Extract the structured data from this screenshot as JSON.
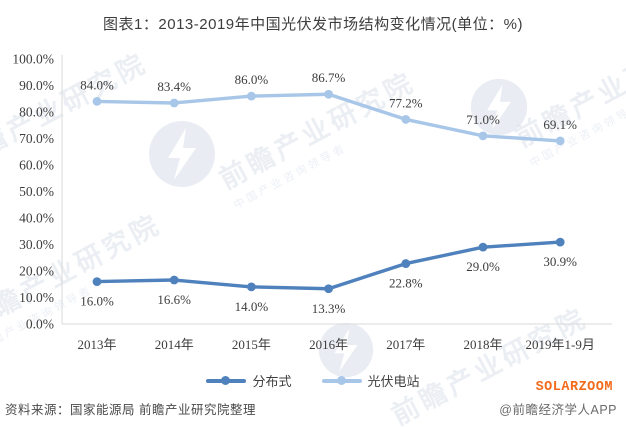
{
  "title": "图表1：2013-2019年中国光伏发市场结构变化情况(单位：%)",
  "chart_data": {
    "type": "line",
    "categories": [
      "2013年",
      "2014年",
      "2015年",
      "2016年",
      "2017年",
      "2018年",
      "2019年1-9月"
    ],
    "series": [
      {
        "name": "光伏电站",
        "color": "#a8c7e8",
        "values": [
          84.0,
          83.4,
          86.0,
          86.7,
          77.2,
          71.0,
          69.1
        ],
        "labels": [
          "84.0%",
          "83.4%",
          "86.0%",
          "86.7%",
          "77.2%",
          "71.0%",
          "69.1%"
        ],
        "label_position": "above"
      },
      {
        "name": "分布式",
        "color": "#4f81bd",
        "values": [
          16.0,
          16.6,
          14.0,
          13.3,
          22.8,
          29.0,
          30.9
        ],
        "labels": [
          "16.0%",
          "16.6%",
          "14.0%",
          "13.3%",
          "22.8%",
          "29.0%",
          "30.9%"
        ],
        "label_position": "below"
      }
    ],
    "legend_order": [
      "分布式",
      "光伏电站"
    ],
    "ylim": [
      0,
      100
    ],
    "yticks": [
      "0.0%",
      "10.0%",
      "20.0%",
      "30.0%",
      "40.0%",
      "50.0%",
      "60.0%",
      "70.0%",
      "80.0%",
      "90.0%",
      "100.0%"
    ],
    "grid": false,
    "legend_position": "bottom",
    "axis_color": "#d9d9d9",
    "label_color": "#3d3d3d"
  },
  "footer": {
    "source": "资料来源：国家能源局 前瞻产业研究院整理",
    "brand": "SOLARZOOM",
    "brand_color": "#f26a1a",
    "credit": "@前瞻经济学人APP"
  },
  "watermark": {
    "text": "前瞻产业研究院",
    "subtext": "中国产业咨询领导者",
    "color": "#dce2ec"
  }
}
